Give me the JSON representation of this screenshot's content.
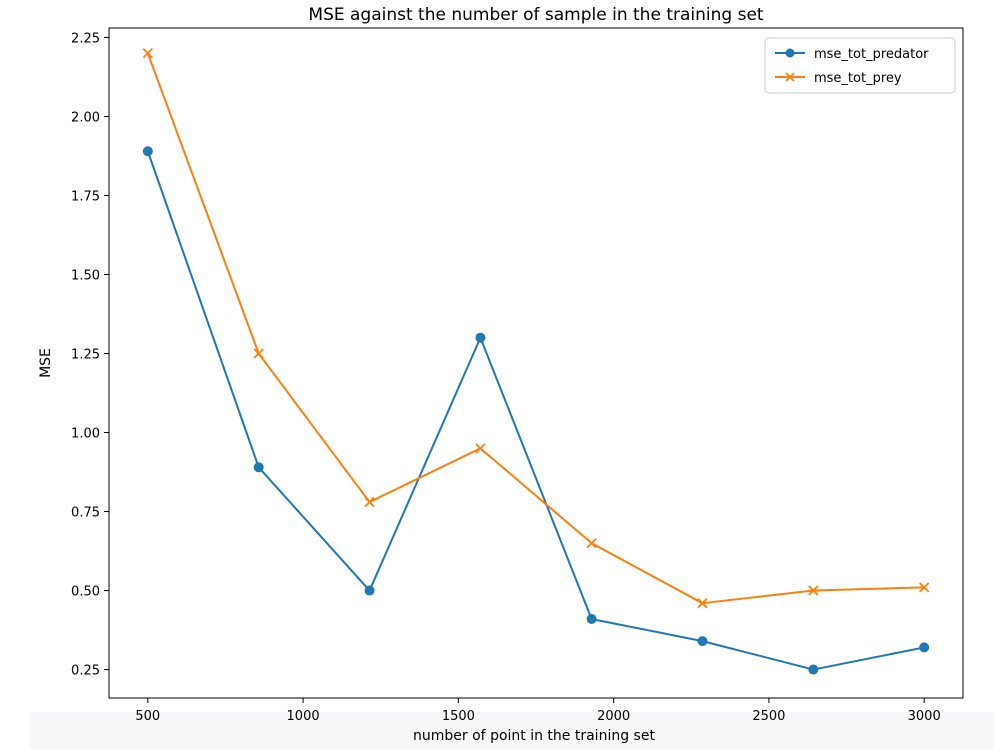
{
  "chart_data": {
    "type": "line",
    "title": "MSE against the number of sample in the training set",
    "xlabel": "number of point in the training set",
    "ylabel": "MSE",
    "xlim": [
      375,
      3125
    ],
    "ylim": [
      0.16,
      2.28
    ],
    "xticks": [
      500,
      1000,
      1500,
      2000,
      2500,
      3000
    ],
    "yticks": [
      0.25,
      0.5,
      0.75,
      1.0,
      1.25,
      1.5,
      1.75,
      2.0,
      2.25
    ],
    "ytick_labels": [
      "0.25",
      "0.50",
      "0.75",
      "1.00",
      "1.25",
      "1.50",
      "1.75",
      "2.00",
      "2.25"
    ],
    "x": [
      500,
      857,
      1214,
      1571,
      1929,
      2286,
      2643,
      3000
    ],
    "series": [
      {
        "name": "mse_tot_predator",
        "color": "#1f77b4",
        "marker": "circle",
        "values": [
          1.89,
          0.89,
          0.5,
          1.3,
          0.41,
          0.34,
          0.25,
          0.32
        ]
      },
      {
        "name": "mse_tot_prey",
        "color": "#ff7f0e",
        "marker": "x",
        "values": [
          2.2,
          1.25,
          0.78,
          0.95,
          0.65,
          0.46,
          0.5,
          0.51
        ]
      }
    ],
    "grid": false,
    "legend_position": "top-right"
  }
}
